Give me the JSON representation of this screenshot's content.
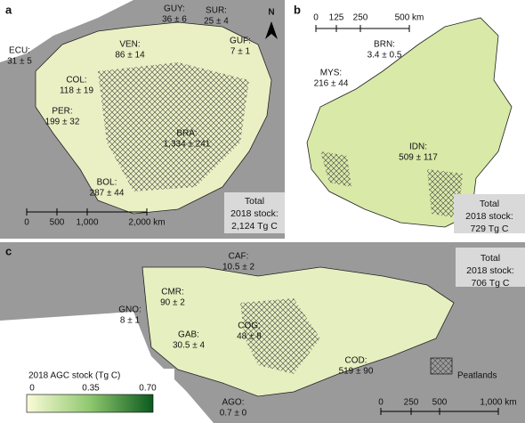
{
  "panels": [
    {
      "letter": "a",
      "north": "N",
      "labels": [
        {
          "name": "GUY:",
          "value": "36 ± 6"
        },
        {
          "name": "SUR:",
          "value": "25 ± 4"
        },
        {
          "name": "GUF:",
          "value": "7 ± 1"
        },
        {
          "name": "VEN:",
          "value": "86 ± 14"
        },
        {
          "name": "ECU:",
          "value": "31 ± 5"
        },
        {
          "name": "COL:",
          "value": "118 ± 19"
        },
        {
          "name": "PER:",
          "value": "199 ± 32"
        },
        {
          "name": "BRA:",
          "value": "1,334 ± 241"
        },
        {
          "name": "BOL:",
          "value": "287 ± 44"
        }
      ],
      "total": [
        "Total",
        "2018 stock:",
        "2,124 Tg C"
      ],
      "scale": [
        "0",
        "500",
        "1,000",
        "2,000 km"
      ]
    },
    {
      "letter": "b",
      "labels": [
        {
          "name": "BRN:",
          "value": "3.4 ± 0.5"
        },
        {
          "name": "MYS:",
          "value": "216 ± 44"
        },
        {
          "name": "IDN:",
          "value": "509 ± 117"
        }
      ],
      "total": [
        "Total",
        "2018 stock:",
        "729 Tg C"
      ],
      "scale": [
        "0",
        "125",
        "250",
        "500 km"
      ]
    },
    {
      "letter": "c",
      "labels": [
        {
          "name": "CAF:",
          "value": "10.5 ± 2"
        },
        {
          "name": "CMR:",
          "value": "90 ± 2"
        },
        {
          "name": "GNO:",
          "value": "8 ± 1"
        },
        {
          "name": "GAB:",
          "value": "30.5 ± 4"
        },
        {
          "name": "COG:",
          "value": "48 ± 8"
        },
        {
          "name": "COD:",
          "value": "519 ± 90"
        },
        {
          "name": "AGO:",
          "value": "0.7 ± 0"
        }
      ],
      "total": [
        "Total",
        "2018 stock:",
        "706 Tg C"
      ],
      "scale": [
        "0",
        "250",
        "500",
        "1,000 km"
      ]
    }
  ],
  "legend": {
    "title": "2018 AGC stock (Tg C)",
    "ticks": [
      "0",
      "0.35",
      "0.70"
    ],
    "peatlands": "Peatlands"
  }
}
